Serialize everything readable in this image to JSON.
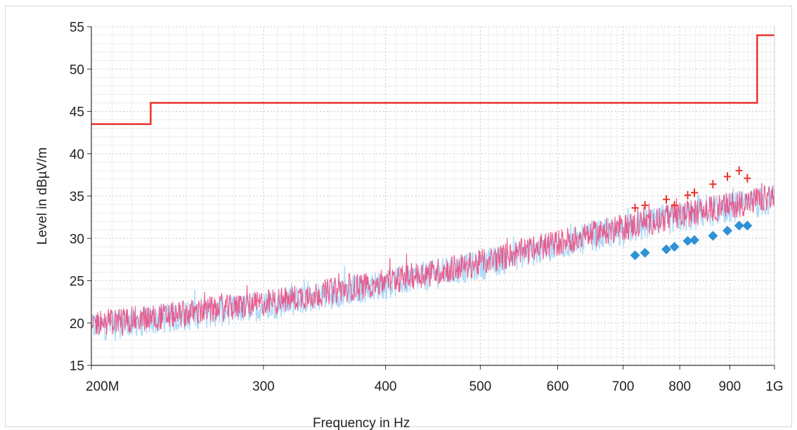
{
  "chart_data": {
    "type": "line",
    "xlabel": "Frequency in Hz",
    "ylabel": "Level in dBµV/m",
    "x_scale": "log",
    "xlim": [
      200000000,
      1000000000
    ],
    "ylim": [
      15,
      55
    ],
    "grid": true,
    "x_ticks": [
      {
        "value": 200000000,
        "label": "200M"
      },
      {
        "value": 300000000,
        "label": "300"
      },
      {
        "value": 400000000,
        "label": "400"
      },
      {
        "value": 500000000,
        "label": "500"
      },
      {
        "value": 600000000,
        "label": "600"
      },
      {
        "value": 700000000,
        "label": "700"
      },
      {
        "value": 800000000,
        "label": "800"
      },
      {
        "value": 900000000,
        "label": "900"
      },
      {
        "value": 1000000000,
        "label": "1G"
      }
    ],
    "y_ticks": [
      {
        "value": 15,
        "label": "15"
      },
      {
        "value": 20,
        "label": "20"
      },
      {
        "value": 25,
        "label": "25"
      },
      {
        "value": 30,
        "label": "30"
      },
      {
        "value": 35,
        "label": "35"
      },
      {
        "value": 40,
        "label": "40"
      },
      {
        "value": 45,
        "label": "45"
      },
      {
        "value": 50,
        "label": "50"
      },
      {
        "value": 55,
        "label": "55"
      }
    ],
    "series": [
      {
        "kind": "limit-step",
        "color": "#e8342d",
        "x": [
          200000000,
          230000000,
          230000000,
          960000000,
          960000000,
          1000000000
        ],
        "y": [
          43.5,
          43.5,
          46,
          46,
          54,
          54
        ]
      },
      {
        "kind": "noise-trace",
        "color": "#a9d5f5",
        "x": [
          200000000,
          230000000,
          300000000,
          400000000,
          500000000,
          600000000,
          700000000,
          800000000,
          900000000,
          1000000000
        ],
        "y": [
          19.6,
          20.3,
          22.0,
          24.6,
          26.8,
          29.2,
          31.0,
          32.4,
          33.6,
          34.6
        ],
        "spread": 1.8
      },
      {
        "kind": "noise-trace",
        "color": "#e8558a",
        "x": [
          200000000,
          230000000,
          300000000,
          400000000,
          500000000,
          600000000,
          700000000,
          800000000,
          900000000,
          1000000000
        ],
        "y": [
          20.0,
          20.6,
          22.3,
          24.9,
          27.1,
          29.5,
          31.3,
          32.7,
          33.9,
          34.9
        ],
        "spread": 1.6
      },
      {
        "kind": "peak-markers",
        "marker": "cross",
        "color": "#e8342d",
        "x": [
          720000000,
          737000000,
          775000000,
          790000000,
          815000000,
          828000000,
          865000000,
          895000000,
          920000000,
          938000000
        ],
        "y": [
          33.6,
          33.9,
          34.6,
          33.9,
          35.1,
          35.4,
          36.4,
          37.3,
          38.0,
          37.1
        ]
      },
      {
        "kind": "qp-markers",
        "marker": "diamond",
        "color": "#2f92d6",
        "x": [
          720000000,
          737000000,
          775000000,
          790000000,
          815000000,
          828000000,
          865000000,
          895000000,
          920000000,
          938000000
        ],
        "y": [
          28.0,
          28.3,
          28.7,
          29.0,
          29.7,
          29.8,
          30.3,
          30.9,
          31.5,
          31.5
        ]
      }
    ]
  }
}
